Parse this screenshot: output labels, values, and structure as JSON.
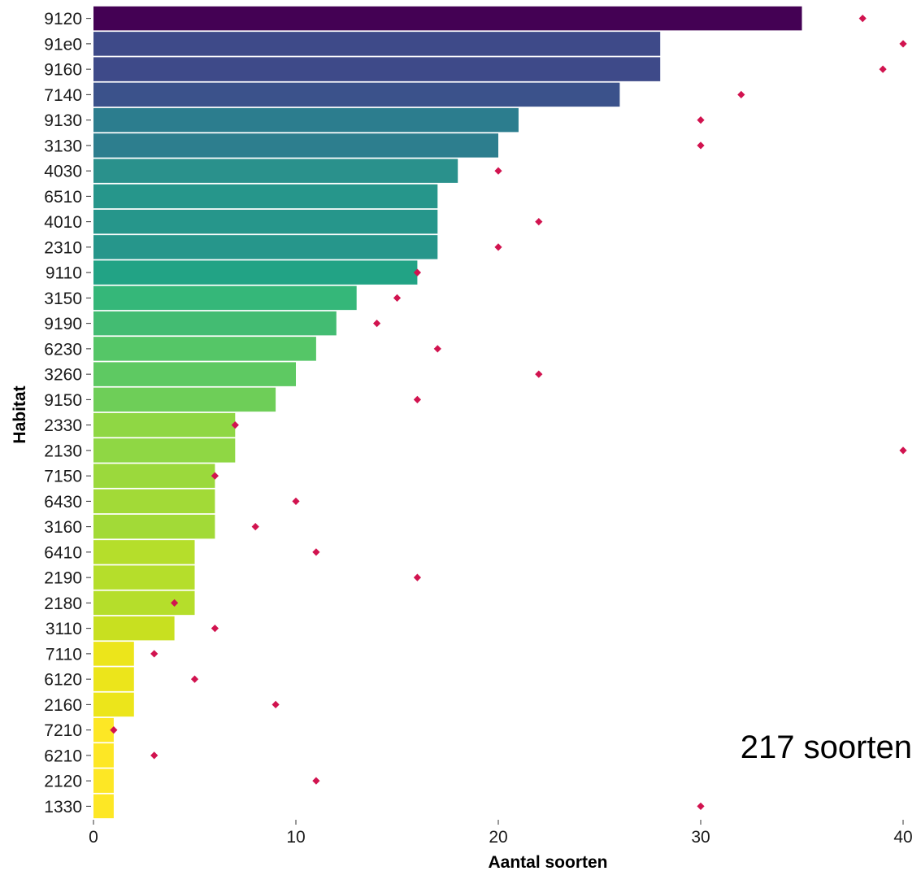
{
  "chart_data": {
    "type": "bar",
    "orientation": "horizontal",
    "xlabel": "Aantal soorten",
    "ylabel": "Habitat",
    "xlim": [
      0,
      40
    ],
    "xticks": [
      0,
      10,
      20,
      30,
      40
    ],
    "grid": false,
    "annotation": "217 soorten",
    "colormap": "viridis",
    "marker_color": "#d1134f",
    "categories": [
      "9120",
      "91e0",
      "9160",
      "7140",
      "9130",
      "3130",
      "4030",
      "6510",
      "4010",
      "2310",
      "9110",
      "3150",
      "9190",
      "6230",
      "3260",
      "9150",
      "2330",
      "2130",
      "7150",
      "6430",
      "3160",
      "6410",
      "2190",
      "2180",
      "3110",
      "7110",
      "6120",
      "2160",
      "7210",
      "6210",
      "2120",
      "1330"
    ],
    "bar_values": [
      35,
      28,
      28,
      26,
      21,
      20,
      18,
      17,
      17,
      17,
      16,
      13,
      12,
      11,
      10,
      9,
      7,
      7,
      6,
      6,
      6,
      5,
      5,
      5,
      4,
      2,
      2,
      2,
      1,
      1,
      1,
      1
    ],
    "point_values": [
      38,
      40,
      39,
      32,
      30,
      30,
      20,
      null,
      22,
      20,
      16,
      15,
      14,
      17,
      22,
      16,
      7,
      40,
      6,
      10,
      8,
      11,
      16,
      4,
      6,
      3,
      5,
      9,
      1,
      3,
      11,
      30
    ],
    "bar_colors": [
      "#440154",
      "#3e4a89",
      "#3e4a89",
      "#3b528b",
      "#2c7d8e",
      "#2d7e8e",
      "#2a918c",
      "#26968b",
      "#26968b",
      "#26968b",
      "#22a385",
      "#35b779",
      "#43bc72",
      "#55c667",
      "#5ec962",
      "#6ece58",
      "#8fd744",
      "#8fd744",
      "#9bd93c",
      "#a2da37",
      "#a2da37",
      "#b5de2b",
      "#b5de2b",
      "#b5de2b",
      "#c8e020",
      "#ece51b",
      "#ece51b",
      "#ece51b",
      "#fde725",
      "#fde725",
      "#fde725",
      "#fde725"
    ]
  }
}
